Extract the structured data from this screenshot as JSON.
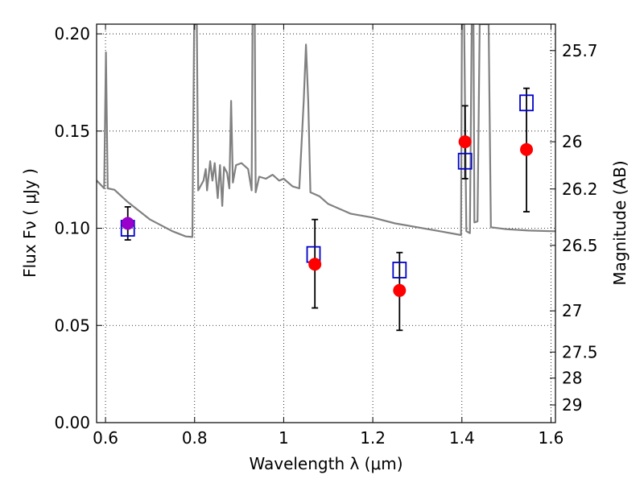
{
  "chart_data": {
    "type": "scatter",
    "title": "",
    "xlabel": "Wavelength  λ (μm)",
    "ylabel": "Flux  Fν  ( μJy )",
    "ylabel_right": "Magnitude (AB)",
    "xlim": [
      0.58,
      1.61
    ],
    "ylim": [
      0.0,
      0.205
    ],
    "grid": true,
    "x_ticks": [
      0.6,
      0.8,
      1.0,
      1.2,
      1.4,
      1.6
    ],
    "x_tick_labels": [
      "0.6",
      "0.8",
      "1",
      "1.2",
      "1.4",
      "1.6"
    ],
    "y_ticks": [
      0.0,
      0.05,
      0.1,
      0.15,
      0.2
    ],
    "y_tick_labels": [
      "0.00",
      "0.05",
      "0.10",
      "0.15",
      "0.20"
    ],
    "right_ticks": [
      {
        "flux": 0.1914,
        "label": "25.7"
      },
      {
        "flux": 0.1445,
        "label": "26"
      },
      {
        "flux": 0.1202,
        "label": "26.2"
      },
      {
        "flux": 0.0912,
        "label": "26.5"
      },
      {
        "flux": 0.0575,
        "label": "27"
      },
      {
        "flux": 0.0363,
        "label": "27.5"
      },
      {
        "flux": 0.0229,
        "label": "28"
      },
      {
        "flux": 0.0091,
        "label": "29"
      }
    ],
    "series": [
      {
        "kind": "line",
        "color": "#808080",
        "points": [
          [
            0.58,
            0.1246
          ],
          [
            0.597,
            0.1205
          ],
          [
            0.601,
            0.1905
          ],
          [
            0.605,
            0.1205
          ],
          [
            0.62,
            0.1198
          ],
          [
            0.65,
            0.1135
          ],
          [
            0.7,
            0.1045
          ],
          [
            0.75,
            0.0985
          ],
          [
            0.78,
            0.0958
          ],
          [
            0.795,
            0.0955
          ],
          [
            0.799,
            0.205
          ],
          [
            0.805,
            0.205
          ],
          [
            0.808,
            0.1195
          ],
          [
            0.82,
            0.1245
          ],
          [
            0.825,
            0.1305
          ],
          [
            0.828,
            0.1195
          ],
          [
            0.835,
            0.1345
          ],
          [
            0.84,
            0.1245
          ],
          [
            0.845,
            0.1335
          ],
          [
            0.852,
            0.1155
          ],
          [
            0.857,
            0.1325
          ],
          [
            0.862,
            0.1115
          ],
          [
            0.866,
            0.1315
          ],
          [
            0.873,
            0.1285
          ],
          [
            0.878,
            0.1205
          ],
          [
            0.882,
            0.1655
          ],
          [
            0.886,
            0.1235
          ],
          [
            0.893,
            0.1325
          ],
          [
            0.905,
            0.1335
          ],
          [
            0.92,
            0.1305
          ],
          [
            0.928,
            0.1195
          ],
          [
            0.93,
            0.205
          ],
          [
            0.935,
            0.205
          ],
          [
            0.937,
            0.1185
          ],
          [
            0.945,
            0.1265
          ],
          [
            0.96,
            0.1255
          ],
          [
            0.975,
            0.1275
          ],
          [
            0.99,
            0.1245
          ],
          [
            1.0,
            0.1255
          ],
          [
            1.02,
            0.1215
          ],
          [
            1.035,
            0.1205
          ],
          [
            1.045,
            0.1655
          ],
          [
            1.05,
            0.1945
          ],
          [
            1.055,
            0.1655
          ],
          [
            1.06,
            0.1185
          ],
          [
            1.08,
            0.1165
          ],
          [
            1.1,
            0.1125
          ],
          [
            1.15,
            0.1075
          ],
          [
            1.2,
            0.1055
          ],
          [
            1.25,
            0.1025
          ],
          [
            1.3,
            0.1005
          ],
          [
            1.35,
            0.0985
          ],
          [
            1.398,
            0.0965
          ],
          [
            1.4,
            0.205
          ],
          [
            1.405,
            0.205
          ],
          [
            1.41,
            0.0985
          ],
          [
            1.418,
            0.0975
          ],
          [
            1.422,
            0.205
          ],
          [
            1.426,
            0.205
          ],
          [
            1.428,
            0.103
          ],
          [
            1.435,
            0.1035
          ],
          [
            1.44,
            0.205
          ],
          [
            1.46,
            0.205
          ],
          [
            1.465,
            0.1005
          ],
          [
            1.5,
            0.0995
          ],
          [
            1.55,
            0.0988
          ],
          [
            1.6,
            0.0985
          ],
          [
            1.61,
            0.0985
          ]
        ]
      },
      {
        "kind": "open-square",
        "color": "#0000cc",
        "points": [
          [
            0.65,
            0.1
          ],
          [
            1.067,
            0.0865
          ],
          [
            1.26,
            0.0785
          ],
          [
            1.407,
            0.1345
          ],
          [
            1.545,
            0.1645
          ]
        ]
      },
      {
        "kind": "filled-circle",
        "color": "#ff0000",
        "points": [
          [
            0.65,
            0.1025
          ],
          [
            1.07,
            0.0815
          ],
          [
            1.26,
            0.068
          ],
          [
            1.407,
            0.1445
          ],
          [
            1.545,
            0.1405
          ]
        ],
        "point_colors": [
          "#9900cc",
          "#ff0000",
          "#ff0000",
          "#ff0000",
          "#ff0000"
        ],
        "error_low": [
          0.094,
          0.059,
          0.0475,
          0.1255,
          0.1085
        ],
        "error_high": [
          0.111,
          0.1045,
          0.0875,
          0.163,
          0.172
        ]
      }
    ]
  }
}
